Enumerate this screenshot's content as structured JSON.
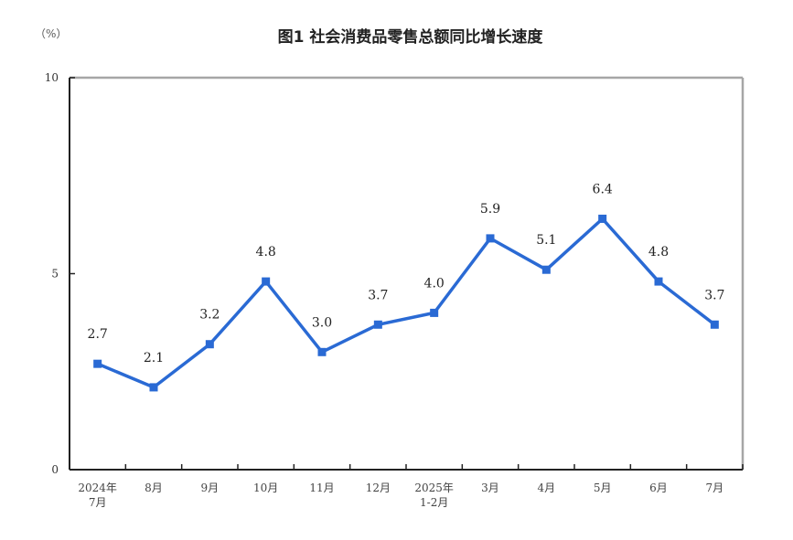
{
  "header": {
    "unit_label": "（%）",
    "title": "图1  社会消费品零售总额同比增长速度"
  },
  "colors": {
    "line": "#2a6ad4",
    "axis": "#222222",
    "frame": "#a6a6a6"
  },
  "chart_data": {
    "type": "line",
    "title": "图1 社会消费品零售总额同比增长速度",
    "xlabel": "",
    "ylabel": "（%）",
    "ylim": [
      0,
      10
    ],
    "yticks": [
      0,
      5,
      10
    ],
    "grid": false,
    "legend": "none",
    "categories": [
      "2024年7月",
      "8月",
      "9月",
      "10月",
      "11月",
      "12月",
      "2025年1-2月",
      "3月",
      "4月",
      "5月",
      "6月",
      "7月"
    ],
    "category_lines": [
      [
        "2024年",
        "7月"
      ],
      [
        "8月"
      ],
      [
        "9月"
      ],
      [
        "10月"
      ],
      [
        "11月"
      ],
      [
        "12月"
      ],
      [
        "2025年",
        "1-2月"
      ],
      [
        "3月"
      ],
      [
        "4月"
      ],
      [
        "5月"
      ],
      [
        "6月"
      ],
      [
        "7月"
      ]
    ],
    "series": [
      {
        "name": "社会消费品零售总额同比增长速度",
        "values": [
          2.7,
          2.1,
          3.2,
          4.8,
          3.0,
          3.7,
          4.0,
          5.9,
          5.1,
          6.4,
          4.8,
          3.7
        ],
        "labels": [
          "2.7",
          "2.1",
          "3.2",
          "4.8",
          "3.0",
          "3.7",
          "4.0",
          "5.9",
          "5.1",
          "6.4",
          "4.8",
          "3.7"
        ]
      }
    ]
  }
}
